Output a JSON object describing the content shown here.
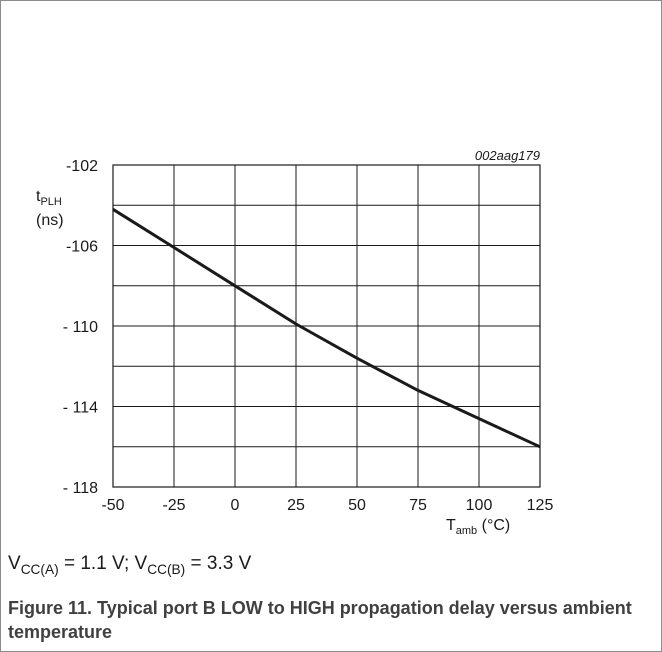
{
  "figure_id": "002aag179",
  "y_label": {
    "main": "t",
    "sub": "PLH",
    "unit": "(ns)"
  },
  "x_label": {
    "main": "T",
    "sub": "amb",
    "unit": " (°C)"
  },
  "y_ticks": [
    "-102",
    "-106",
    "- 110",
    "- 114",
    "- 118"
  ],
  "x_ticks": [
    "-50",
    "-25",
    "0",
    "25",
    "50",
    "75",
    "100",
    "125"
  ],
  "conditions": {
    "v1_main": "V",
    "v1_sub": "CC(A)",
    "v1_val": " = 1.1 V; ",
    "v2_main": "V",
    "v2_sub": "CC(B)",
    "v2_val": " = 3.3 V"
  },
  "figure_caption": "Figure 11.  Typical port B LOW to HIGH propagation delay versus ambient temperature",
  "chart_data": {
    "type": "line",
    "xlim": [
      -50,
      125
    ],
    "ylim": [
      -118,
      -102
    ],
    "grid": true,
    "x_gridlines": [
      -50,
      -25,
      0,
      25,
      50,
      75,
      100,
      125
    ],
    "y_gridlines": [
      -102,
      -104,
      -106,
      -108,
      -110,
      -112,
      -114,
      -116,
      -118
    ],
    "series": [
      {
        "x": [
          -50,
          -25,
          0,
          25,
          50,
          75,
          100,
          125
        ],
        "y": [
          -104.2,
          -106.1,
          -108.0,
          -109.9,
          -111.6,
          -113.2,
          -114.6,
          -116.0
        ]
      }
    ]
  }
}
